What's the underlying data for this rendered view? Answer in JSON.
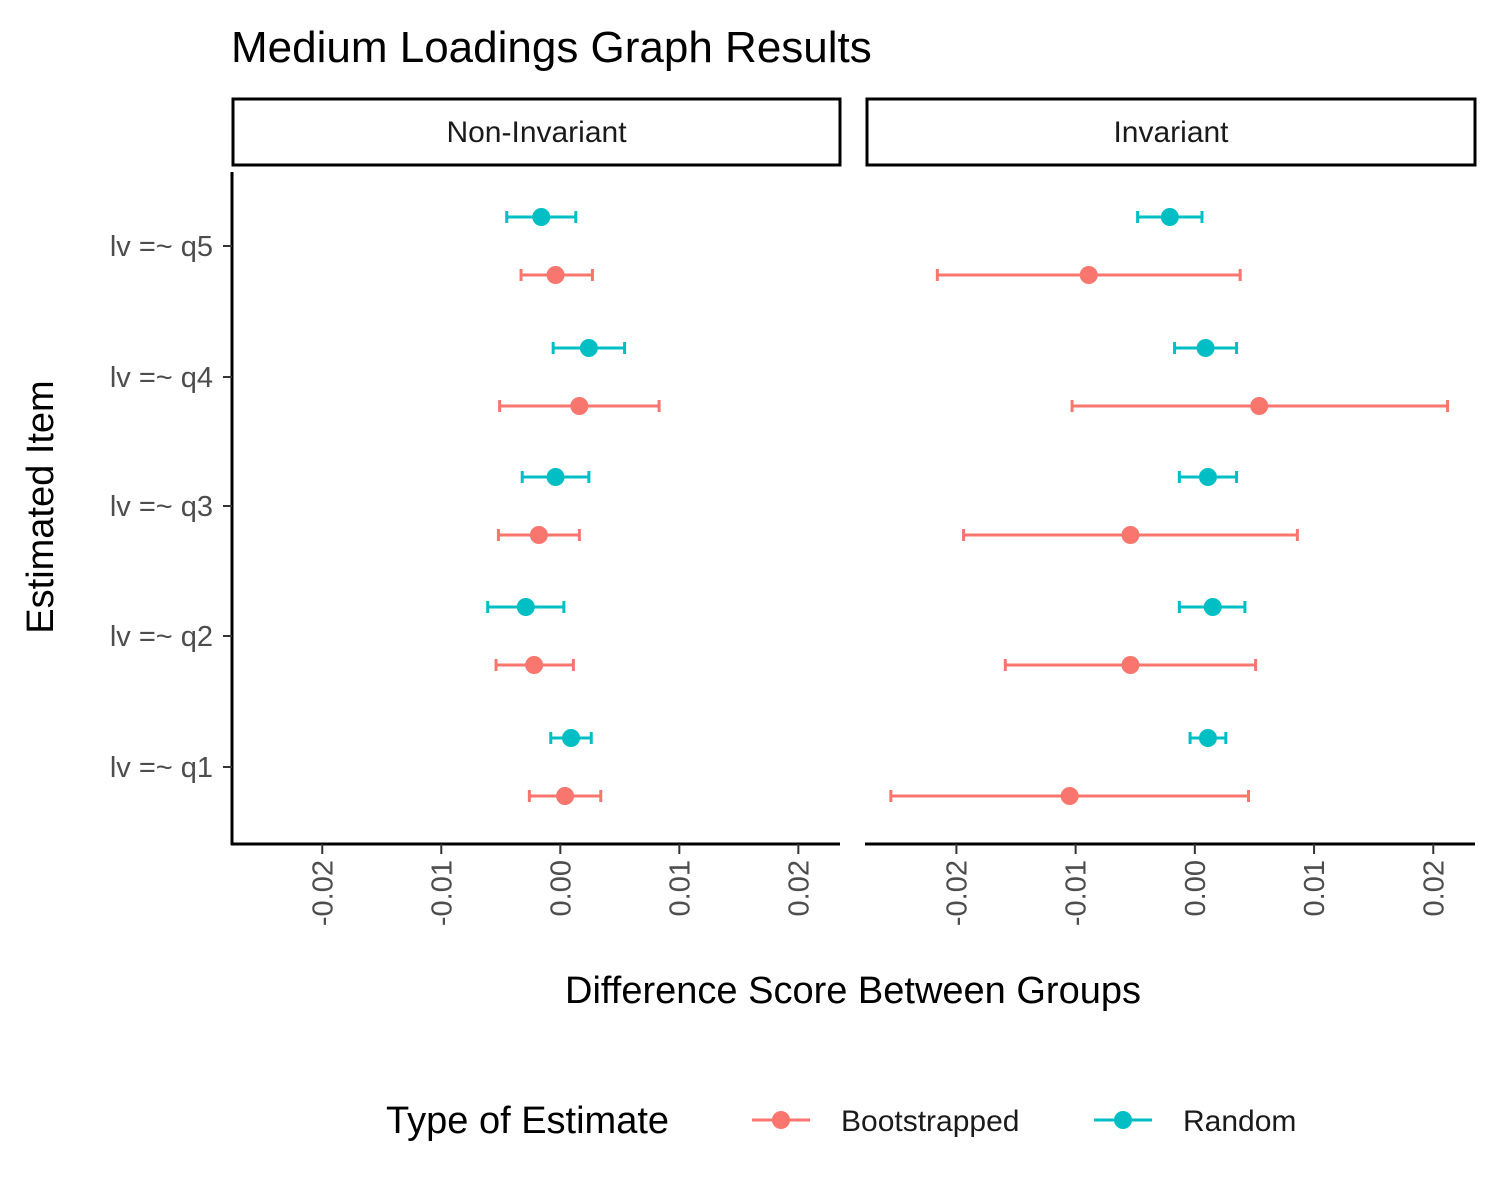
{
  "chart_data": {
    "type": "scatter",
    "subtype": "point-range (dot with error bars), faceted",
    "title": "Medium Loadings Graph Results",
    "xlabel": "Difference Score Between Groups",
    "ylabel": "Estimated Item",
    "xlim": [
      -0.0275,
      0.0235
    ],
    "x_ticks": [
      -0.02,
      -0.01,
      0.0,
      0.01,
      0.02
    ],
    "x_tick_labels": [
      "-0.02",
      "-0.01",
      "0.00",
      "0.01",
      "0.02"
    ],
    "categories": [
      "lv =~ q1",
      "lv =~ q2",
      "lv =~ q3",
      "lv =~ q4",
      "lv =~ q5"
    ],
    "grid": false,
    "legend": {
      "title": "Type of Estimate",
      "position": "bottom",
      "entries": [
        "Bootstrapped",
        "Random"
      ]
    },
    "colors": {
      "Bootstrapped": "#F8766D",
      "Random": "#00BFC4"
    },
    "facets": [
      {
        "label": "Non-Invariant",
        "series": [
          {
            "name": "Bootstrapped",
            "points": [
              {
                "item": "lv =~ q1",
                "estimate": 0.0004,
                "lower": -0.0026,
                "upper": 0.0034
              },
              {
                "item": "lv =~ q2",
                "estimate": -0.0022,
                "lower": -0.0054,
                "upper": 0.0011
              },
              {
                "item": "lv =~ q3",
                "estimate": -0.0018,
                "lower": -0.0052,
                "upper": 0.0016
              },
              {
                "item": "lv =~ q4",
                "estimate": 0.0016,
                "lower": -0.0051,
                "upper": 0.0083
              },
              {
                "item": "lv =~ q5",
                "estimate": -0.0004,
                "lower": -0.0033,
                "upper": 0.0027
              }
            ]
          },
          {
            "name": "Random",
            "points": [
              {
                "item": "lv =~ q1",
                "estimate": 0.0009,
                "lower": -0.0008,
                "upper": 0.0026
              },
              {
                "item": "lv =~ q2",
                "estimate": -0.0029,
                "lower": -0.0061,
                "upper": 0.0003
              },
              {
                "item": "lv =~ q3",
                "estimate": -0.0004,
                "lower": -0.0032,
                "upper": 0.0024
              },
              {
                "item": "lv =~ q4",
                "estimate": 0.0024,
                "lower": -0.0006,
                "upper": 0.0054
              },
              {
                "item": "lv =~ q5",
                "estimate": -0.0016,
                "lower": -0.0045,
                "upper": 0.0013
              }
            ]
          }
        ]
      },
      {
        "label": "Invariant",
        "series": [
          {
            "name": "Bootstrapped",
            "points": [
              {
                "item": "lv =~ q1",
                "estimate": -0.0105,
                "lower": -0.0255,
                "upper": 0.0045
              },
              {
                "item": "lv =~ q2",
                "estimate": -0.0054,
                "lower": -0.0159,
                "upper": 0.0051
              },
              {
                "item": "lv =~ q3",
                "estimate": -0.0054,
                "lower": -0.0194,
                "upper": 0.0086
              },
              {
                "item": "lv =~ q4",
                "estimate": 0.0054,
                "lower": -0.0103,
                "upper": 0.0212
              },
              {
                "item": "lv =~ q5",
                "estimate": -0.0089,
                "lower": -0.0216,
                "upper": 0.0038
              }
            ]
          },
          {
            "name": "Random",
            "points": [
              {
                "item": "lv =~ q1",
                "estimate": 0.0011,
                "lower": -0.0004,
                "upper": 0.0026
              },
              {
                "item": "lv =~ q2",
                "estimate": 0.0015,
                "lower": -0.0013,
                "upper": 0.0042
              },
              {
                "item": "lv =~ q3",
                "estimate": 0.0011,
                "lower": -0.0013,
                "upper": 0.0035
              },
              {
                "item": "lv =~ q4",
                "estimate": 0.0009,
                "lower": -0.0017,
                "upper": 0.0035
              },
              {
                "item": "lv =~ q5",
                "estimate": -0.0021,
                "lower": -0.0048,
                "upper": 0.0006
              }
            ]
          }
        ]
      }
    ]
  }
}
